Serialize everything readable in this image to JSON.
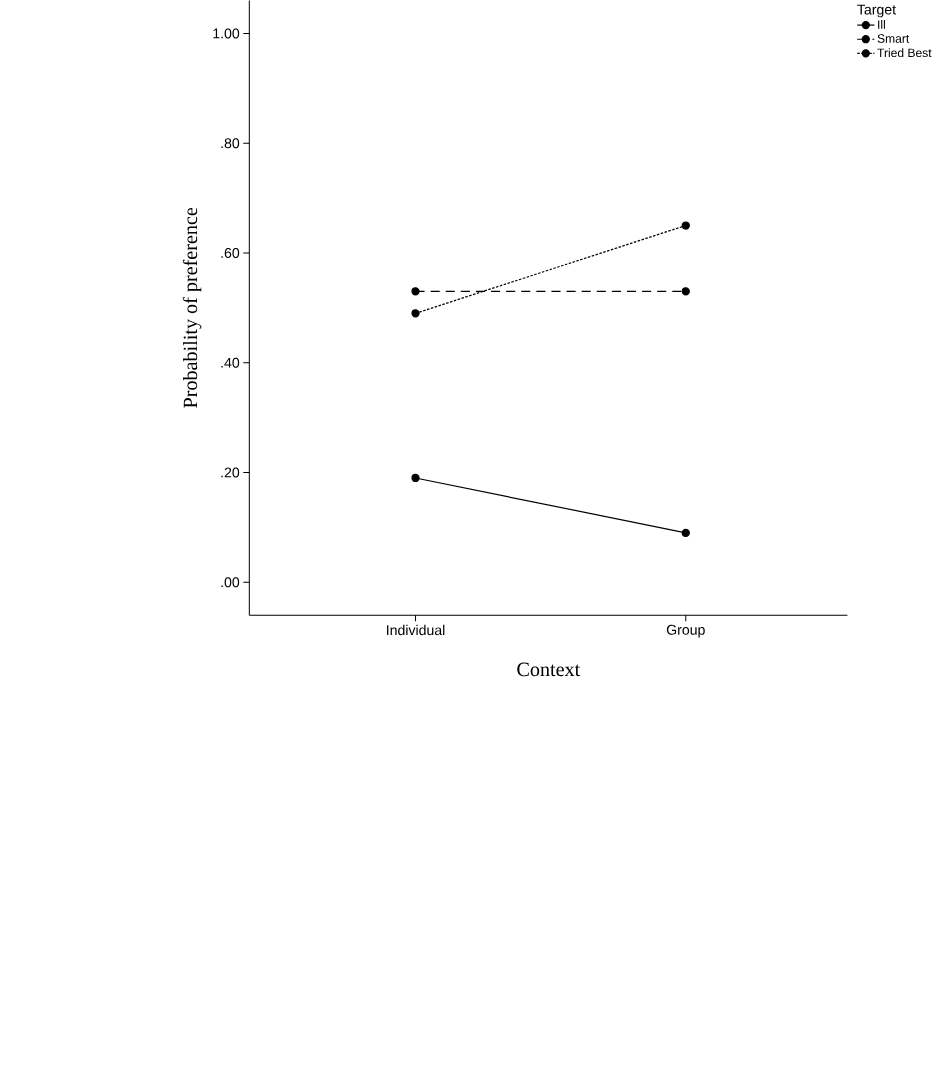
{
  "chart_data": {
    "type": "line",
    "xlabel": "Context",
    "ylabel": "Probability of preference",
    "legend_title": "Target",
    "categories": [
      "Individual",
      "Group"
    ],
    "series": [
      {
        "name": "Ill",
        "color": "#000000",
        "line_style": "solid",
        "values": [
          0.19,
          0.09
        ]
      },
      {
        "name": "Smart",
        "color": "#000000",
        "line_style": "dashed",
        "values": [
          0.53,
          0.53
        ]
      },
      {
        "name": "Tried Best",
        "color": "#000000",
        "line_style": "dotted",
        "values": [
          0.49,
          0.65
        ]
      }
    ],
    "ylim": [
      -0.06,
      1.06
    ],
    "yticks": [
      {
        "value": 0,
        "label": ".00"
      },
      {
        "value": 0.2,
        "label": ".20"
      },
      {
        "value": 0.4,
        "label": ".40"
      },
      {
        "value": 0.6,
        "label": ".60"
      },
      {
        "value": 0.8,
        "label": ".80"
      },
      {
        "value": 1,
        "label": "1.00"
      }
    ],
    "grid": false,
    "legend": "top right",
    "marker": "circle"
  }
}
